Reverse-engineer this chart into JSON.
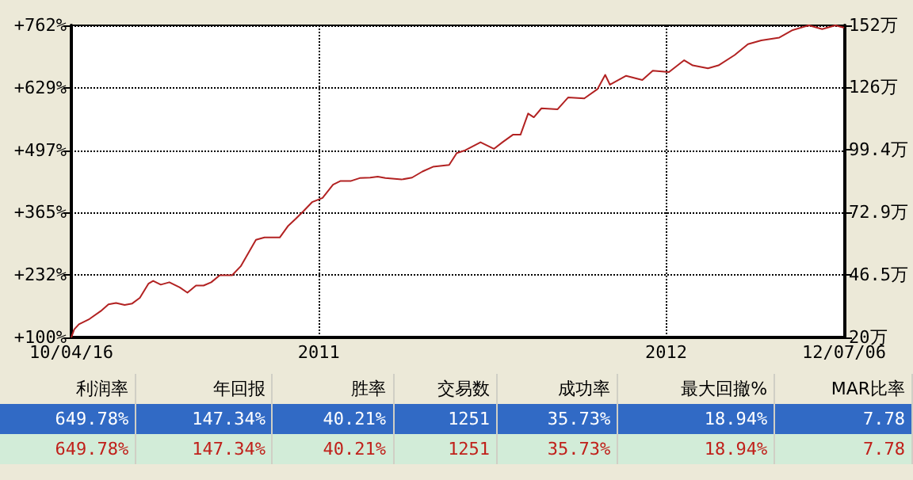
{
  "chart_data": {
    "type": "line",
    "x": [
      "2010-04-16",
      "2010-04-19",
      "2010-04-24",
      "2010-05-05",
      "2010-05-17",
      "2010-05-25",
      "2010-06-02",
      "2010-06-11",
      "2010-06-19",
      "2010-06-27",
      "2010-07-06",
      "2010-07-11",
      "2010-07-19",
      "2010-07-28",
      "2010-08-08",
      "2010-08-16",
      "2010-08-25",
      "2010-09-02",
      "2010-09-10",
      "2010-09-19",
      "2010-10-02",
      "2010-10-11",
      "2010-10-19",
      "2010-10-27",
      "2010-11-05",
      "2010-11-21",
      "2010-11-30",
      "2010-12-08",
      "2010-12-16",
      "2010-12-25",
      "2011-01-05",
      "2011-01-16",
      "2011-01-24",
      "2011-02-04",
      "2011-02-13",
      "2011-02-24",
      "2011-03-04",
      "2011-03-12",
      "2011-03-29",
      "2011-04-09",
      "2011-04-20",
      "2011-05-01",
      "2011-05-18",
      "2011-05-26",
      "2011-06-04",
      "2011-06-20",
      "2011-07-04",
      "2011-07-13",
      "2011-07-24",
      "2011-08-01",
      "2011-08-09",
      "2011-08-15",
      "2011-08-23",
      "2011-09-09",
      "2011-09-20",
      "2011-10-07",
      "2011-10-21",
      "2011-10-29",
      "2011-11-03",
      "2011-11-20",
      "2011-12-07",
      "2011-12-18",
      "2012-01-04",
      "2012-01-20",
      "2012-01-29",
      "2012-02-14",
      "2012-02-25",
      "2012-03-13",
      "2012-03-27",
      "2012-04-10",
      "2012-04-29",
      "2012-05-13",
      "2012-05-30",
      "2012-06-13",
      "2012-06-27",
      "2012-07-06"
    ],
    "series": [
      {
        "color": "#b22222",
        "values": [
          100,
          117,
          128,
          139,
          156,
          170,
          173,
          169,
          172,
          184,
          214,
          220,
          212,
          217,
          206,
          195,
          210,
          210,
          217,
          232,
          232,
          251,
          279,
          307,
          312,
          312,
          337,
          352,
          368,
          387,
          396,
          424,
          432,
          432,
          438,
          439,
          441,
          438,
          435,
          439,
          452,
          462,
          466,
          491,
          497,
          514,
          500,
          514,
          530,
          530,
          575,
          567,
          586,
          584,
          609,
          607,
          627,
          657,
          636,
          655,
          646,
          666,
          663,
          688,
          677,
          671,
          677,
          699,
          722,
          730,
          736,
          752,
          762,
          754,
          762,
          757
        ]
      }
    ],
    "xlim": [
      "2010-04-16",
      "2012-07-06"
    ],
    "xticks": [
      {
        "value": "2010-04-16",
        "label": "10/04/16"
      },
      {
        "value": "2011-01-01",
        "label": "2011"
      },
      {
        "value": "2012-01-01",
        "label": "2012"
      },
      {
        "value": "2012-07-06",
        "label": "12/07/06"
      }
    ],
    "ylim": [
      100,
      762
    ],
    "yticks": [
      {
        "value": 100,
        "label": "+100%"
      },
      {
        "value": 232,
        "label": "+232%"
      },
      {
        "value": 365,
        "label": "+365%"
      },
      {
        "value": 497,
        "label": "+497%"
      },
      {
        "value": 629,
        "label": "+629%"
      },
      {
        "value": 762,
        "label": "+762%"
      }
    ],
    "y2lim": [
      20,
      152
    ],
    "y2ticks": [
      {
        "value": 20,
        "label": "20万"
      },
      {
        "value": 46.5,
        "label": "46.5万"
      },
      {
        "value": 72.9,
        "label": "72.9万"
      },
      {
        "value": 99.4,
        "label": "99.4万"
      },
      {
        "value": 126,
        "label": "126万"
      },
      {
        "value": 152,
        "label": "152万"
      }
    ],
    "grid": true,
    "marker": "none",
    "line_style": "solid",
    "annotations": [
      "利润率",
      "年回报",
      "胜率",
      "交易数",
      "成功率",
      "最大回撤%",
      "MAR比率",
      "649.78%",
      "147.34%",
      "40.21%",
      "1251",
      "35.73%",
      "18.94%",
      "7.78",
      "649.78%",
      "147.34%",
      "40.21%",
      "1251",
      "35.73%",
      "18.94%",
      "7.78"
    ]
  }
}
